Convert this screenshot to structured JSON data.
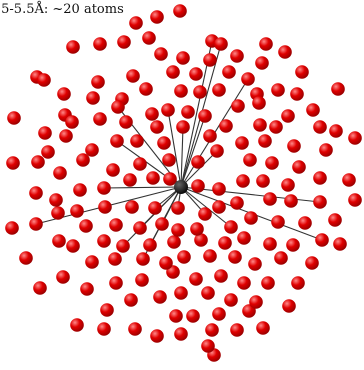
{
  "caption": ".5-5.5Å: ~20 atoms",
  "colors": {
    "atom_fill": "#e00000",
    "atom_shade": "#8f0000",
    "atom_highlight": "#ff8a8a",
    "center_atom": "#111111",
    "bond": "#333333"
  },
  "icons": {
    "atom": "red-sphere",
    "center": "black-sphere"
  }
}
